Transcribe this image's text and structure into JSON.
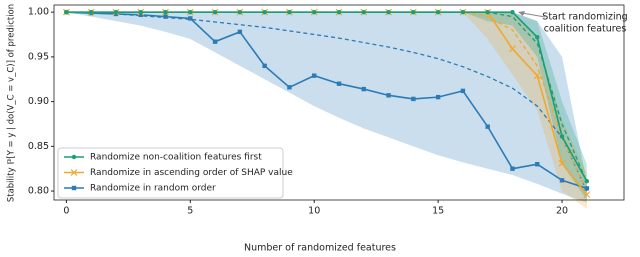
{
  "chart_data": {
    "type": "line",
    "x_label": "Number of randomized features",
    "y_label": "Stability ℙ[Y = y | do(V_C = v_C)] of prediction",
    "annotation": [
      "Start randomizing",
      "coalition features"
    ],
    "x": [
      0,
      1,
      2,
      3,
      4,
      5,
      6,
      7,
      8,
      9,
      10,
      11,
      12,
      13,
      14,
      15,
      16,
      17,
      18,
      19,
      20,
      21
    ],
    "xlim": [
      -0.5,
      22.5
    ],
    "xticks": [
      0,
      5,
      10,
      15,
      20
    ],
    "ylim": [
      0.79,
      1.008
    ],
    "yticks": [
      {
        "value": 0.8,
        "label": "0.80"
      },
      0.85,
      {
        "value": 0.9,
        "label": "0.90"
      },
      0.95,
      {
        "value": 1.0,
        "label": "1.00"
      }
    ],
    "legend": "lower left",
    "series": [
      {
        "name": "Randomize in random order",
        "color": "#2c7bb6",
        "marker": "square",
        "values": [
          1.0,
          0.999,
          0.998,
          0.997,
          0.995,
          0.993,
          0.967,
          0.978,
          0.94,
          0.916,
          0.929,
          0.92,
          0.914,
          0.907,
          0.903,
          0.905,
          0.912,
          0.872,
          0.825,
          0.83,
          0.812,
          0.803
        ],
        "dashed_values": [
          1.0,
          0.999,
          0.998,
          0.996,
          0.994,
          0.992,
          0.989,
          0.986,
          0.983,
          0.979,
          0.975,
          0.971,
          0.966,
          0.961,
          0.955,
          0.948,
          0.939,
          0.928,
          0.915,
          0.895,
          0.86,
          0.8
        ],
        "band_high": [
          1.0,
          1.0,
          1.0,
          1.0,
          1.0,
          1.0,
          1.0,
          1.0,
          1.0,
          1.0,
          1.0,
          1.0,
          1.0,
          1.0,
          1.0,
          1.0,
          1.0,
          1.0,
          1.0,
          0.99,
          0.95,
          0.81
        ],
        "band_low": [
          1.0,
          0.995,
          0.99,
          0.985,
          0.978,
          0.97,
          0.955,
          0.94,
          0.925,
          0.91,
          0.895,
          0.882,
          0.87,
          0.86,
          0.85,
          0.84,
          0.832,
          0.825,
          0.818,
          0.808,
          0.797,
          0.787
        ]
      },
      {
        "name": "Randomize in ascending order of SHAP value",
        "color": "#f0a830",
        "marker": "cross",
        "values": [
          1.0,
          1.0,
          1.0,
          1.0,
          1.0,
          1.0,
          1.0,
          1.0,
          1.0,
          1.0,
          1.0,
          1.0,
          1.0,
          1.0,
          1.0,
          1.0,
          1.0,
          1.0,
          0.959,
          0.929,
          0.831,
          0.796
        ],
        "dashed_values": [
          1.0,
          1.0,
          1.0,
          1.0,
          1.0,
          1.0,
          1.0,
          1.0,
          1.0,
          1.0,
          1.0,
          1.0,
          1.0,
          1.0,
          1.0,
          1.0,
          1.0,
          0.995,
          0.98,
          0.94,
          0.86,
          0.8
        ],
        "band_high": [
          1.0,
          1.0,
          1.0,
          1.0,
          1.0,
          1.0,
          1.0,
          1.0,
          1.0,
          1.0,
          1.0,
          1.0,
          1.0,
          1.0,
          1.0,
          1.0,
          1.0,
          1.0,
          1.0,
          0.97,
          0.88,
          0.82
        ],
        "band_low": [
          1.0,
          1.0,
          1.0,
          1.0,
          1.0,
          1.0,
          1.0,
          1.0,
          1.0,
          1.0,
          1.0,
          1.0,
          1.0,
          1.0,
          1.0,
          1.0,
          1.0,
          0.97,
          0.93,
          0.89,
          0.8,
          0.78
        ]
      },
      {
        "name": "Randomize non-coalition features first",
        "color": "#1a9e77",
        "marker": "circle",
        "values": [
          1.0,
          1.0,
          1.0,
          1.0,
          1.0,
          1.0,
          1.0,
          1.0,
          1.0,
          1.0,
          1.0,
          1.0,
          1.0,
          1.0,
          1.0,
          1.0,
          1.0,
          1.0,
          1.0,
          0.972,
          0.861,
          0.811
        ],
        "dashed_values": [
          1.0,
          1.0,
          1.0,
          1.0,
          1.0,
          1.0,
          1.0,
          1.0,
          1.0,
          1.0,
          1.0,
          1.0,
          1.0,
          1.0,
          1.0,
          1.0,
          1.0,
          1.0,
          0.995,
          0.965,
          0.875,
          0.81
        ],
        "band_high": [
          1.0,
          1.0,
          1.0,
          1.0,
          1.0,
          1.0,
          1.0,
          1.0,
          1.0,
          1.0,
          1.0,
          1.0,
          1.0,
          1.0,
          1.0,
          1.0,
          1.0,
          1.0,
          1.0,
          0.99,
          0.9,
          0.83
        ],
        "band_low": [
          1.0,
          1.0,
          1.0,
          1.0,
          1.0,
          1.0,
          1.0,
          1.0,
          1.0,
          1.0,
          1.0,
          1.0,
          1.0,
          1.0,
          1.0,
          1.0,
          1.0,
          0.99,
          0.985,
          0.95,
          0.83,
          0.79
        ]
      }
    ]
  }
}
